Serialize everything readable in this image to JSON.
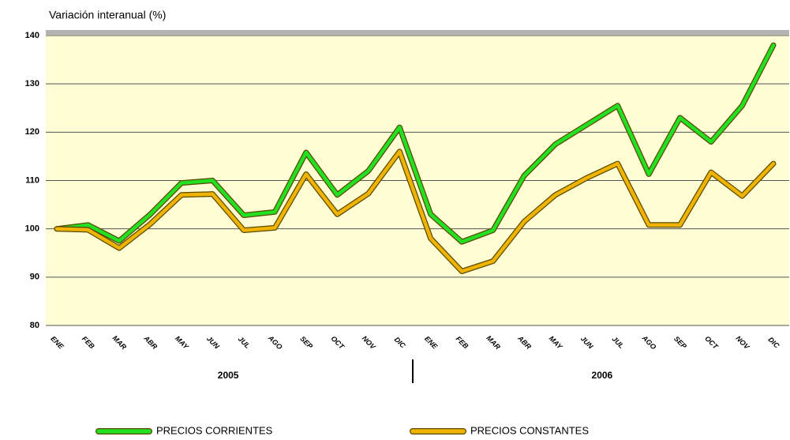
{
  "chart_data": {
    "type": "line",
    "title": "Variación interanual (%)",
    "categories": [
      "ENE",
      "FEB",
      "MAR",
      "ABR",
      "MAY",
      "JUN",
      "JUL",
      "AGO",
      "SEP",
      "OCT",
      "NOV",
      "DIC",
      "ENE",
      "FEB",
      "MAR",
      "ABR",
      "MAY",
      "JUN",
      "JUL",
      "AGO",
      "SEP",
      "OCT",
      "NOV",
      "DIC"
    ],
    "groups": [
      "2005",
      "2006"
    ],
    "series": [
      {
        "name": "PRECIOS CORRIENTES",
        "color": "#22e022",
        "values": [
          100,
          100.8,
          97.5,
          103,
          109.5,
          110,
          102.8,
          103.5,
          115.8,
          107,
          112,
          121,
          103,
          97.3,
          99.7,
          111,
          117.5,
          121.5,
          125.5,
          111.3,
          123,
          118,
          125.5,
          138
        ]
      },
      {
        "name": "PRECIOS CONSTANTES",
        "color": "#f0b400",
        "values": [
          100,
          99.8,
          96,
          101,
          107,
          107.2,
          99.7,
          100.2,
          111.3,
          103,
          107.3,
          116,
          98,
          91.2,
          93.3,
          101.5,
          107,
          110.5,
          113.5,
          100.8,
          100.8,
          111.7,
          106.8,
          113.5
        ]
      }
    ],
    "ylim": [
      80,
      140
    ],
    "yticks": [
      80,
      90,
      100,
      110,
      120,
      130,
      140
    ],
    "grid": true
  }
}
